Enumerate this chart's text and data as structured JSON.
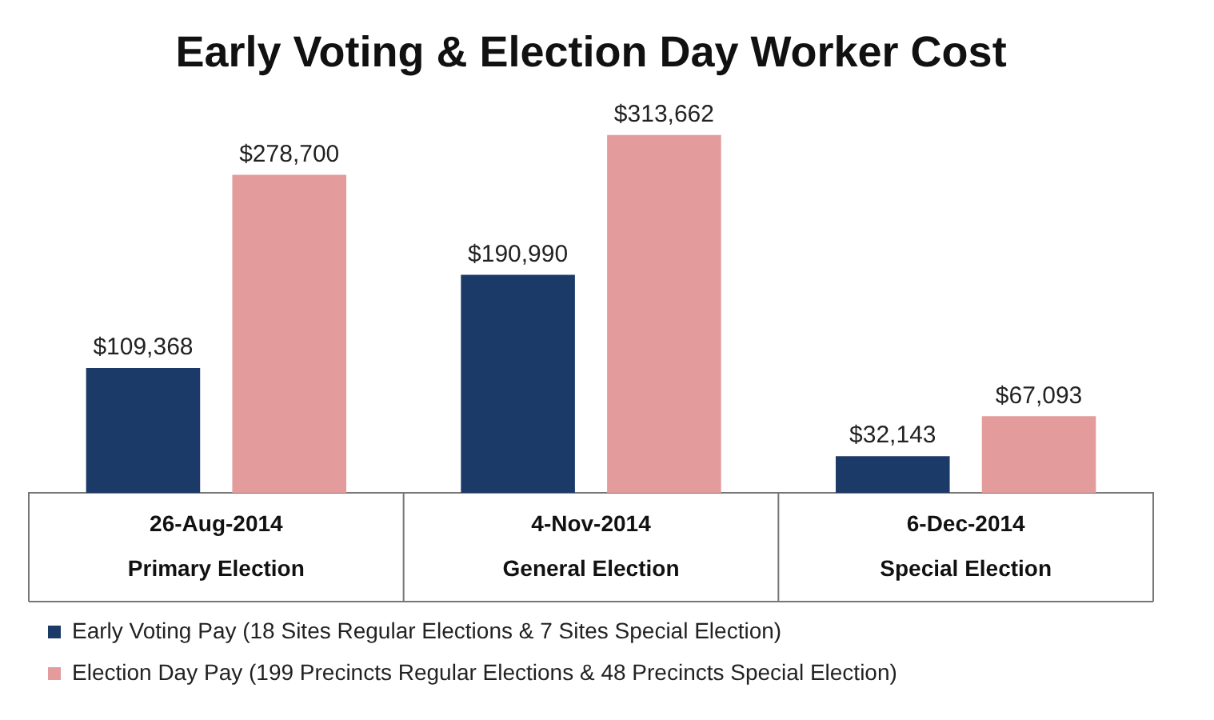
{
  "chart_data": {
    "type": "bar",
    "title": "Early Voting & Election Day Worker Cost",
    "categories": [
      "26-Aug-2014\nPrimary Election",
      "4-Nov-2014\nGeneral Election",
      "6-Dec-2014\nSpecial Election"
    ],
    "series": [
      {
        "name": "Early Voting Pay (18 Sites Regular Elections & 7 Sites Special Election)",
        "color": "#1c3a68",
        "values": [
          109368,
          190990,
          32143
        ],
        "value_labels": [
          "$109,368",
          "$190,990",
          "$32,143"
        ]
      },
      {
        "name": "Election Day Pay (199 Precincts Regular Elections & 48 Precincts Special Election)",
        "color": "#e39b9c",
        "values": [
          278700,
          313662,
          67093
        ],
        "value_labels": [
          "$278,700",
          "$313,662",
          "$67,093"
        ]
      }
    ],
    "legend": "bottom",
    "grid": false
  }
}
